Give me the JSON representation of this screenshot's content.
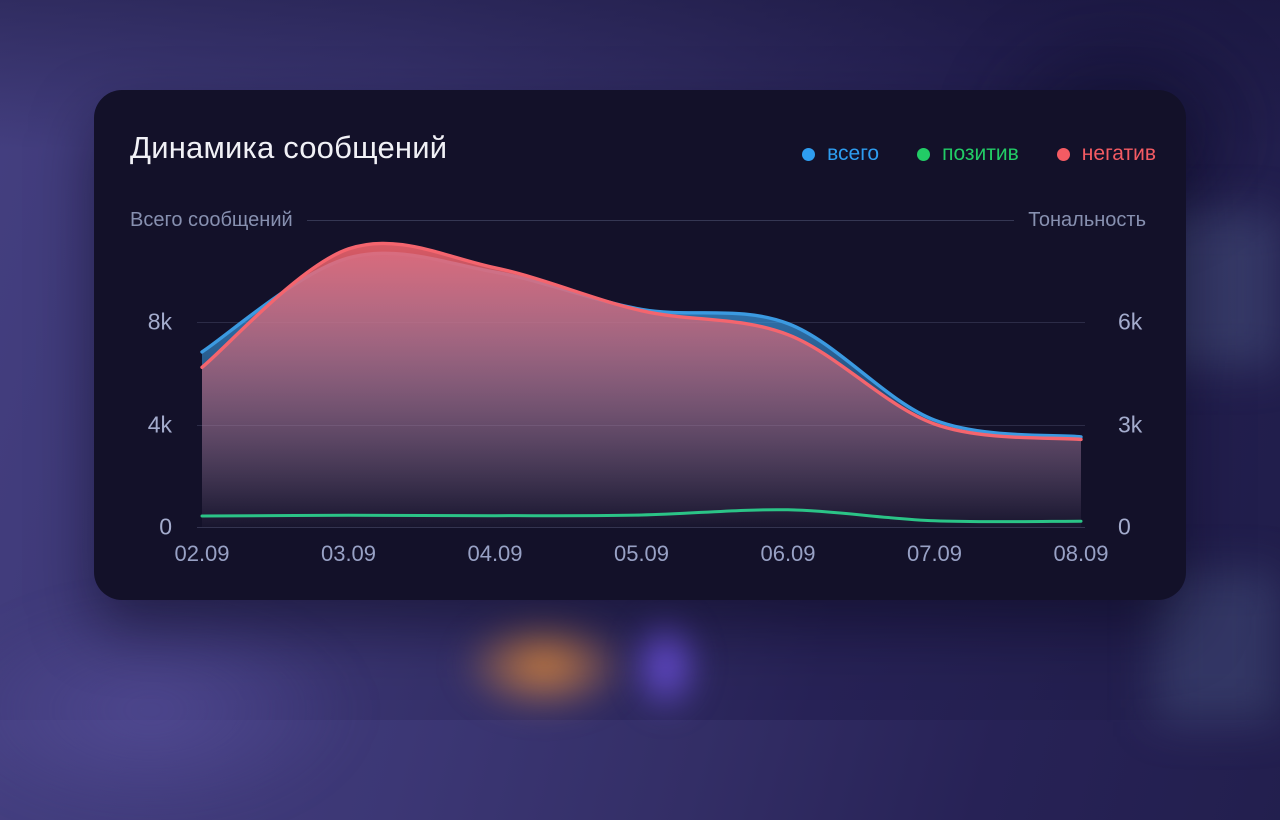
{
  "card": {
    "title": "Динамика сообщений",
    "legend": [
      {
        "id": "total",
        "label": "всего",
        "color": "#2e9df0"
      },
      {
        "id": "positive",
        "label": "позитив",
        "color": "#22cc66"
      },
      {
        "id": "negative",
        "label": "негатив",
        "color": "#f45b63"
      }
    ]
  },
  "chart_data": {
    "type": "area",
    "title": "Динамика сообщений",
    "categories": [
      "02.09",
      "03.09",
      "04.09",
      "05.09",
      "06.09",
      "07.09",
      "08.09"
    ],
    "series": [
      {
        "name": "всего",
        "axis": "left",
        "color": "#3b9ae1",
        "values": [
          6800,
          10450,
          9900,
          8450,
          7900,
          4150,
          3500
        ]
      },
      {
        "name": "негатив",
        "axis": "right",
        "color": "#f4656e",
        "values": [
          4650,
          8100,
          7550,
          6300,
          5600,
          3000,
          2550
        ]
      },
      {
        "name": "позитив",
        "axis": "right",
        "color": "#2bc487",
        "values": [
          320,
          340,
          330,
          350,
          500,
          180,
          170
        ]
      }
    ],
    "left_axis": {
      "title": "Всего сообщений",
      "ticks": [
        "8k",
        "4k",
        "0"
      ],
      "tick_values": [
        8000,
        4000,
        0
      ],
      "unit_per_gridline": 4000,
      "ylim": [
        0,
        11150
      ]
    },
    "right_axis": {
      "title": "Тональность",
      "ticks": [
        "6k",
        "3k",
        "0"
      ],
      "tick_values": [
        6000,
        3000,
        0
      ],
      "unit_per_gridline": 3000,
      "ylim": [
        0,
        8360
      ]
    },
    "grid": true,
    "legend_position": "top-right",
    "smoothing": "spline"
  }
}
